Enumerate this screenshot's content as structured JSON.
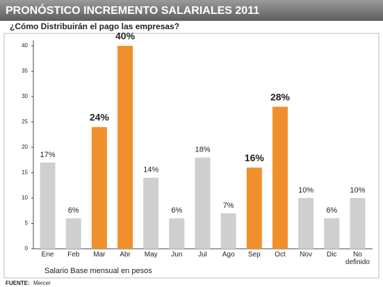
{
  "chart_data": {
    "type": "bar",
    "title": "PRONÓSTICO INCREMENTO SALARIALES 2011",
    "subtitle": "¿Cómo Distribuirán el pago las empresas?",
    "x_label": "Salario Base mensual en pesos",
    "source_label": "FUENTE:",
    "source": "Mercer",
    "categories": [
      "Ene",
      "Feb",
      "Mar",
      "Abr",
      "May",
      "Jun",
      "Jul",
      "Ago",
      "Sep",
      "Oct",
      "Nov",
      "Dic",
      "No definido"
    ],
    "values": [
      17,
      6,
      24,
      40,
      14,
      6,
      18,
      7,
      16,
      28,
      10,
      6,
      10
    ],
    "value_labels": [
      "17%",
      "6%",
      "24%",
      "40%",
      "14%",
      "6%",
      "18%",
      "7%",
      "16%",
      "28%",
      "10%",
      "6%",
      "10%"
    ],
    "colors": [
      "#cfcfcf",
      "#cfcfcf",
      "#f0902c",
      "#f0902c",
      "#cfcfcf",
      "#cfcfcf",
      "#cfcfcf",
      "#cfcfcf",
      "#f0902c",
      "#f0902c",
      "#cfcfcf",
      "#cfcfcf",
      "#cfcfcf"
    ],
    "highlighted": [
      false,
      false,
      true,
      true,
      false,
      false,
      false,
      false,
      true,
      true,
      false,
      false,
      false
    ],
    "ylim": [
      0,
      40
    ],
    "yticks": [
      0,
      5,
      10,
      15,
      20,
      25,
      30,
      35,
      40
    ],
    "grid": false
  }
}
